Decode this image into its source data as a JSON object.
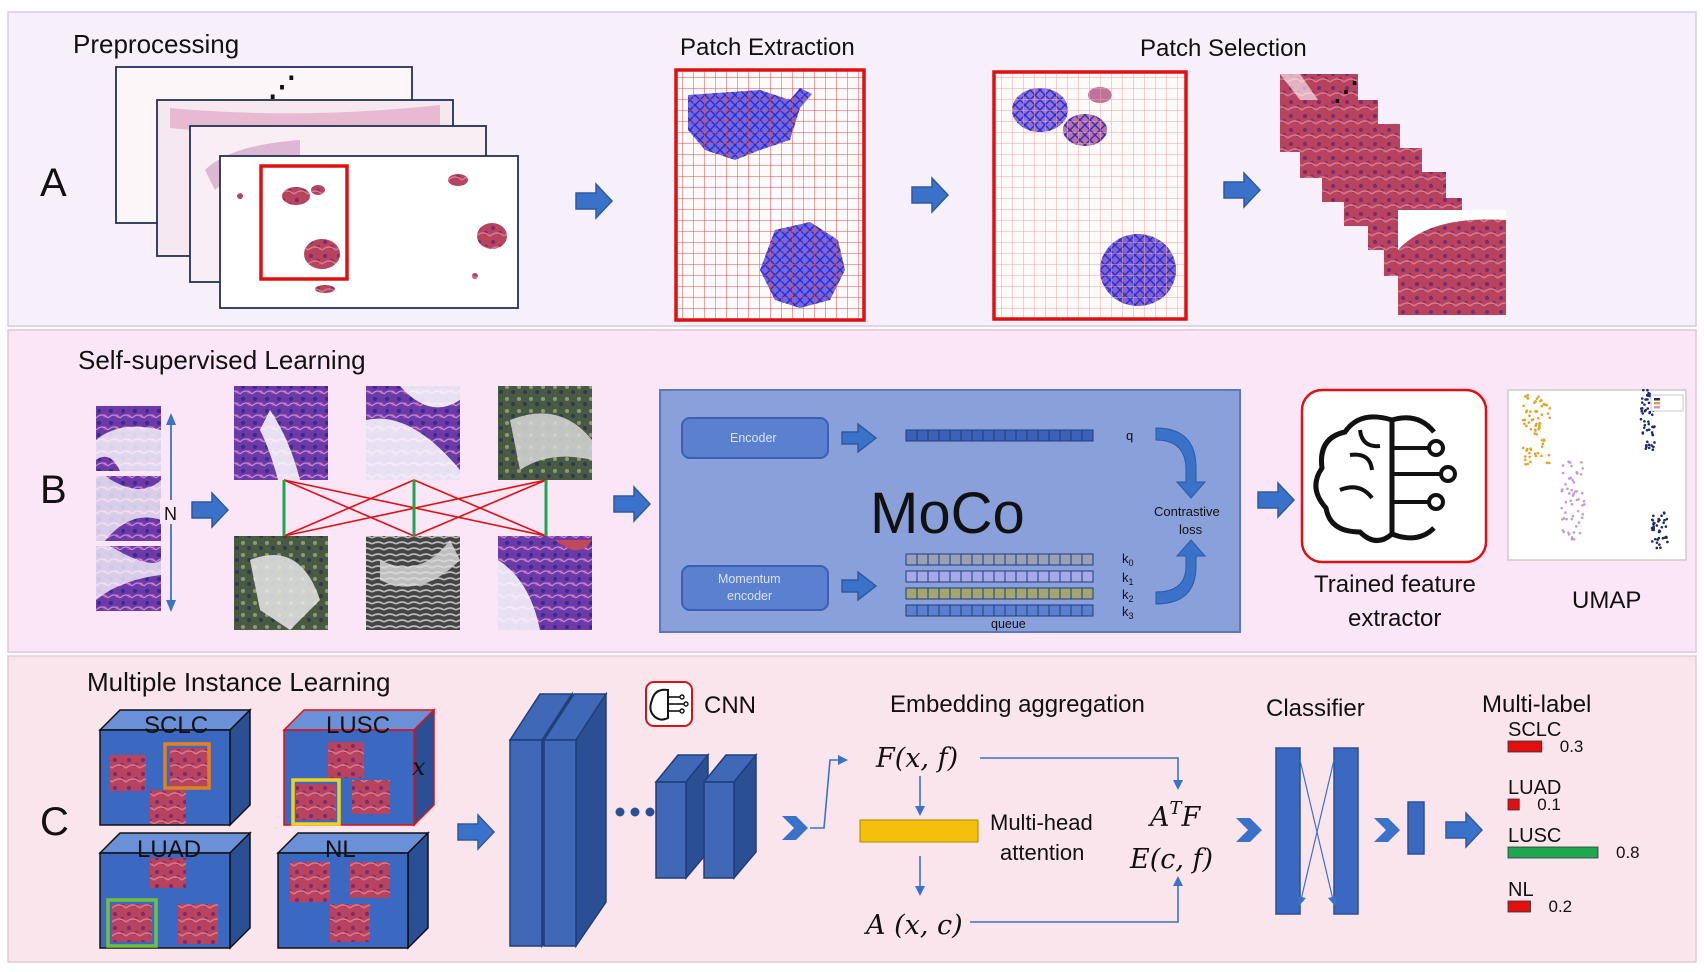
{
  "panelA": {
    "letter": "A",
    "preprocessing": "Preprocessing",
    "ellipsis": "⋰",
    "patch_extraction": "Patch Extraction",
    "patch_selection": "Patch Selection"
  },
  "panelB": {
    "letter": "B",
    "title": "Self-supervised Learning",
    "n_label": "N",
    "moco": {
      "title": "MoCo",
      "encoder": "Encoder",
      "momentum_encoder_line1": "Momentum",
      "momentum_encoder_line2": "encoder",
      "q": "q",
      "k0": "k0",
      "k1": "k1",
      "k2": "k2",
      "k3": "k3",
      "queue": "queue",
      "contrastive_line1": "Contrastive",
      "contrastive_line2": "loss"
    },
    "feature_extractor_line1": "Trained feature",
    "feature_extractor_line2": "extractor",
    "umap": "UMAP"
  },
  "panelC": {
    "letter": "C",
    "title": "Multiple Instance Learning",
    "bags": [
      "SCLC",
      "LUSC",
      "LUAD",
      "NL"
    ],
    "bag_var": "x",
    "cnn": "CNN",
    "embedding_aggregation": "Embedding aggregation",
    "F_label": "F(x, f)",
    "A_label": "A (x, c)",
    "attn_line1": "Multi-head",
    "attn_line2": "attention",
    "ATF": "AᵀF",
    "E_label": "E(c, f)",
    "classifier": "Classifier",
    "multilabel": "Multi-label"
  },
  "chart_data": {
    "type": "bar",
    "categories": [
      "SCLC",
      "LUAD",
      "LUSC",
      "NL"
    ],
    "values": [
      0.3,
      0.1,
      0.8,
      0.2
    ],
    "value_labels": [
      "0.3",
      "0.1",
      "0.8",
      "0.2"
    ],
    "colors": [
      "#e01010",
      "#e01010",
      "#1ea650",
      "#e01010"
    ],
    "xlim": [
      0,
      0.8
    ],
    "title": "Multi-label"
  }
}
